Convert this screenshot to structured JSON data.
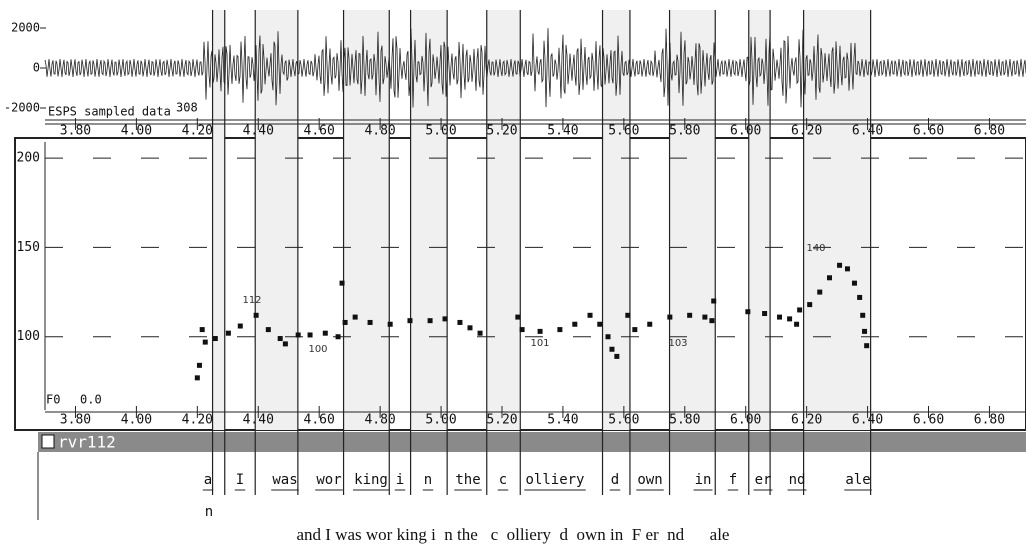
{
  "chart_data": [
    {
      "type": "waveform",
      "title": "ESPS sampled data",
      "count_label": "308",
      "xlim": [
        3.7,
        6.92
      ],
      "ylim": [
        -2500,
        2900
      ],
      "yticks": [
        2000,
        0,
        -2000
      ],
      "xticks": [
        {
          "value": 3.8,
          "label": "3.80"
        },
        {
          "value": 4.0,
          "label": "4.00"
        },
        {
          "value": 4.2,
          "label": "4.20"
        },
        {
          "value": 4.4,
          "label": "4.40"
        },
        {
          "value": 4.6,
          "label": "4.60"
        },
        {
          "value": 4.8,
          "label": "4.80"
        },
        {
          "value": 5.0,
          "label": "5.00"
        },
        {
          "value": 5.2,
          "label": "5.20"
        },
        {
          "value": 5.4,
          "label": "5.40"
        },
        {
          "value": 5.6,
          "label": "5.60"
        },
        {
          "value": 5.8,
          "label": "5.80"
        },
        {
          "value": 6.0,
          "label": "6.00"
        },
        {
          "value": 6.2,
          "label": "6.20"
        },
        {
          "value": 6.4,
          "label": "6.40"
        },
        {
          "value": 6.6,
          "label": "6.60"
        },
        {
          "value": 6.8,
          "label": "6.80"
        }
      ]
    },
    {
      "type": "scatter",
      "y_label": "F0",
      "cursor_value": "0.0",
      "xlim": [
        3.7,
        6.92
      ],
      "ylim": [
        59,
        209
      ],
      "yticks": [
        100,
        150,
        200
      ],
      "grid": true,
      "xticks": [
        {
          "value": 3.8,
          "label": "3.80"
        },
        {
          "value": 4.0,
          "label": "4.00"
        },
        {
          "value": 4.2,
          "label": "4.20"
        },
        {
          "value": 4.4,
          "label": "4.40"
        },
        {
          "value": 4.6,
          "label": "4.60"
        },
        {
          "value": 4.8,
          "label": "4.80"
        },
        {
          "value": 5.0,
          "label": "5.00"
        },
        {
          "value": 5.2,
          "label": "5.20"
        },
        {
          "value": 5.4,
          "label": "5.40"
        },
        {
          "value": 5.6,
          "label": "5.60"
        },
        {
          "value": 5.8,
          "label": "5.80"
        },
        {
          "value": 6.0,
          "label": "6.00"
        },
        {
          "value": 6.2,
          "label": "6.20"
        },
        {
          "value": 6.4,
          "label": "6.40"
        },
        {
          "value": 6.6,
          "label": "6.60"
        },
        {
          "value": 6.8,
          "label": "6.80"
        }
      ],
      "color": "#111111",
      "x": [
        4.2,
        4.207,
        4.216,
        4.226,
        4.259,
        4.302,
        4.341,
        4.393,
        4.433,
        4.472,
        4.489,
        4.531,
        4.57,
        4.62,
        4.662,
        4.675,
        4.685,
        4.718,
        4.767,
        4.833,
        4.898,
        4.964,
        5.013,
        5.062,
        5.095,
        5.128,
        5.252,
        5.266,
        5.325,
        5.39,
        5.439,
        5.489,
        5.521,
        5.548,
        5.561,
        5.577,
        5.613,
        5.636,
        5.685,
        5.751,
        5.816,
        5.866,
        5.889,
        5.895,
        6.007,
        6.062,
        6.111,
        6.144,
        6.167,
        6.177,
        6.21,
        6.243,
        6.275,
        6.308,
        6.334,
        6.357,
        6.374,
        6.384,
        6.39,
        6.397
      ],
      "values": [
        77,
        84,
        104,
        97,
        99,
        102,
        106,
        112,
        104,
        99,
        96,
        101,
        101,
        102,
        100,
        130,
        108,
        111,
        108,
        107,
        109,
        109,
        110,
        108,
        105,
        102,
        111,
        104,
        103,
        104,
        107,
        112,
        107,
        100,
        93,
        89,
        112,
        104,
        107,
        111,
        112,
        111,
        109,
        120,
        114,
        113,
        111,
        110,
        107,
        115,
        118,
        125,
        133,
        140,
        138,
        130,
        122,
        112,
        103,
        95
      ],
      "annotations": [
        "112",
        "100",
        "101",
        "103",
        "140"
      ],
      "boundaries": [
        4.25,
        4.29,
        4.39,
        4.53,
        4.68,
        4.83,
        4.9,
        5.02,
        5.15,
        5.26,
        5.53,
        5.62,
        5.75,
        5.9,
        6.01,
        6.08,
        6.19,
        6.41
      ]
    },
    {
      "type": "labels",
      "file_name": "rvr112",
      "words": [
        "a",
        "I",
        "was",
        "wor",
        "king",
        "i",
        "n",
        "the",
        "c",
        "olliery",
        "d",
        "own",
        "in",
        "f",
        "er",
        "nd",
        "ale"
      ],
      "extra": "n",
      "caption": "and I was wor king i  n the   c  olliery  d  own in  F er  nd      ale"
    }
  ]
}
